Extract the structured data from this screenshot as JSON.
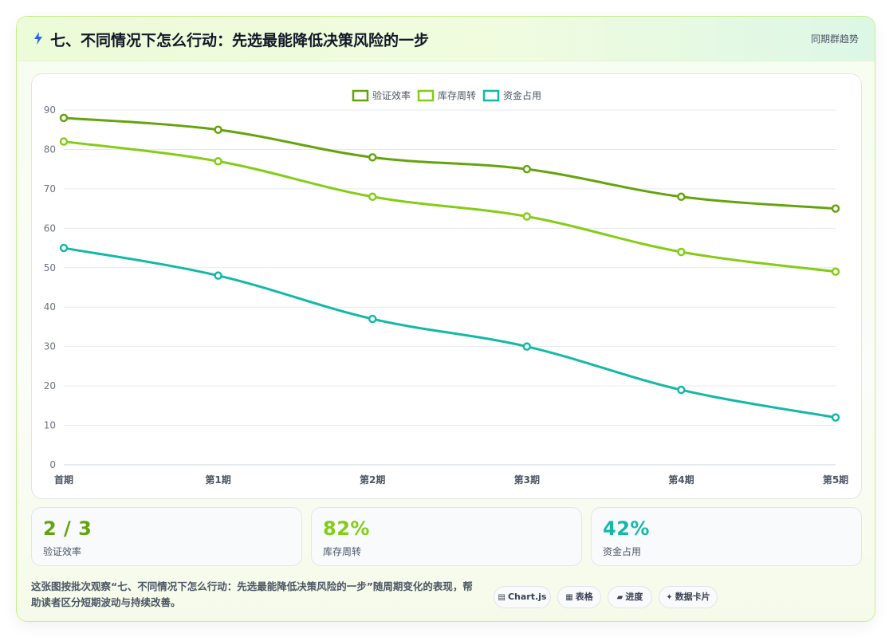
{
  "header": {
    "title": "七、不同情况下怎么行动：先选最能降低决策风险的一步",
    "tag": "同期群趋势"
  },
  "chart_data": {
    "type": "line",
    "categories": [
      "首期",
      "第1期",
      "第2期",
      "第3期",
      "第4期",
      "第5期"
    ],
    "ylim": [
      0,
      90
    ],
    "yticks": [
      0,
      10,
      20,
      30,
      40,
      50,
      60,
      70,
      80,
      90
    ],
    "grid": true,
    "legend_position": "top-center",
    "series": [
      {
        "name": "验证效率",
        "color": "#65a30d",
        "values": [
          88,
          85,
          78,
          75,
          68,
          65
        ]
      },
      {
        "name": "库存周转",
        "color": "#84cc16",
        "values": [
          82,
          77,
          68,
          63,
          54,
          49
        ]
      },
      {
        "name": "资金占用",
        "color": "#14b8a6",
        "values": [
          55,
          48,
          37,
          30,
          19,
          12
        ]
      }
    ]
  },
  "stats": [
    {
      "value": "2 / 3",
      "label": "验证效率",
      "color": "#65a30d"
    },
    {
      "value": "82%",
      "label": "库存周转",
      "color": "#84cc16"
    },
    {
      "value": "42%",
      "label": "资金占用",
      "color": "#14b8a6"
    }
  ],
  "footer": {
    "description": "这张图按批次观察“七、不同情况下怎么行动：先选最能降低决策风险的一步”随周期变化的表现，帮助读者区分短期波动与持续改善。",
    "pills": [
      {
        "icon": "▤",
        "label": "Chart.js"
      },
      {
        "icon": "▦",
        "label": "表格"
      },
      {
        "icon": "▰",
        "label": "进度"
      },
      {
        "icon": "✦",
        "label": "数据卡片"
      }
    ]
  }
}
